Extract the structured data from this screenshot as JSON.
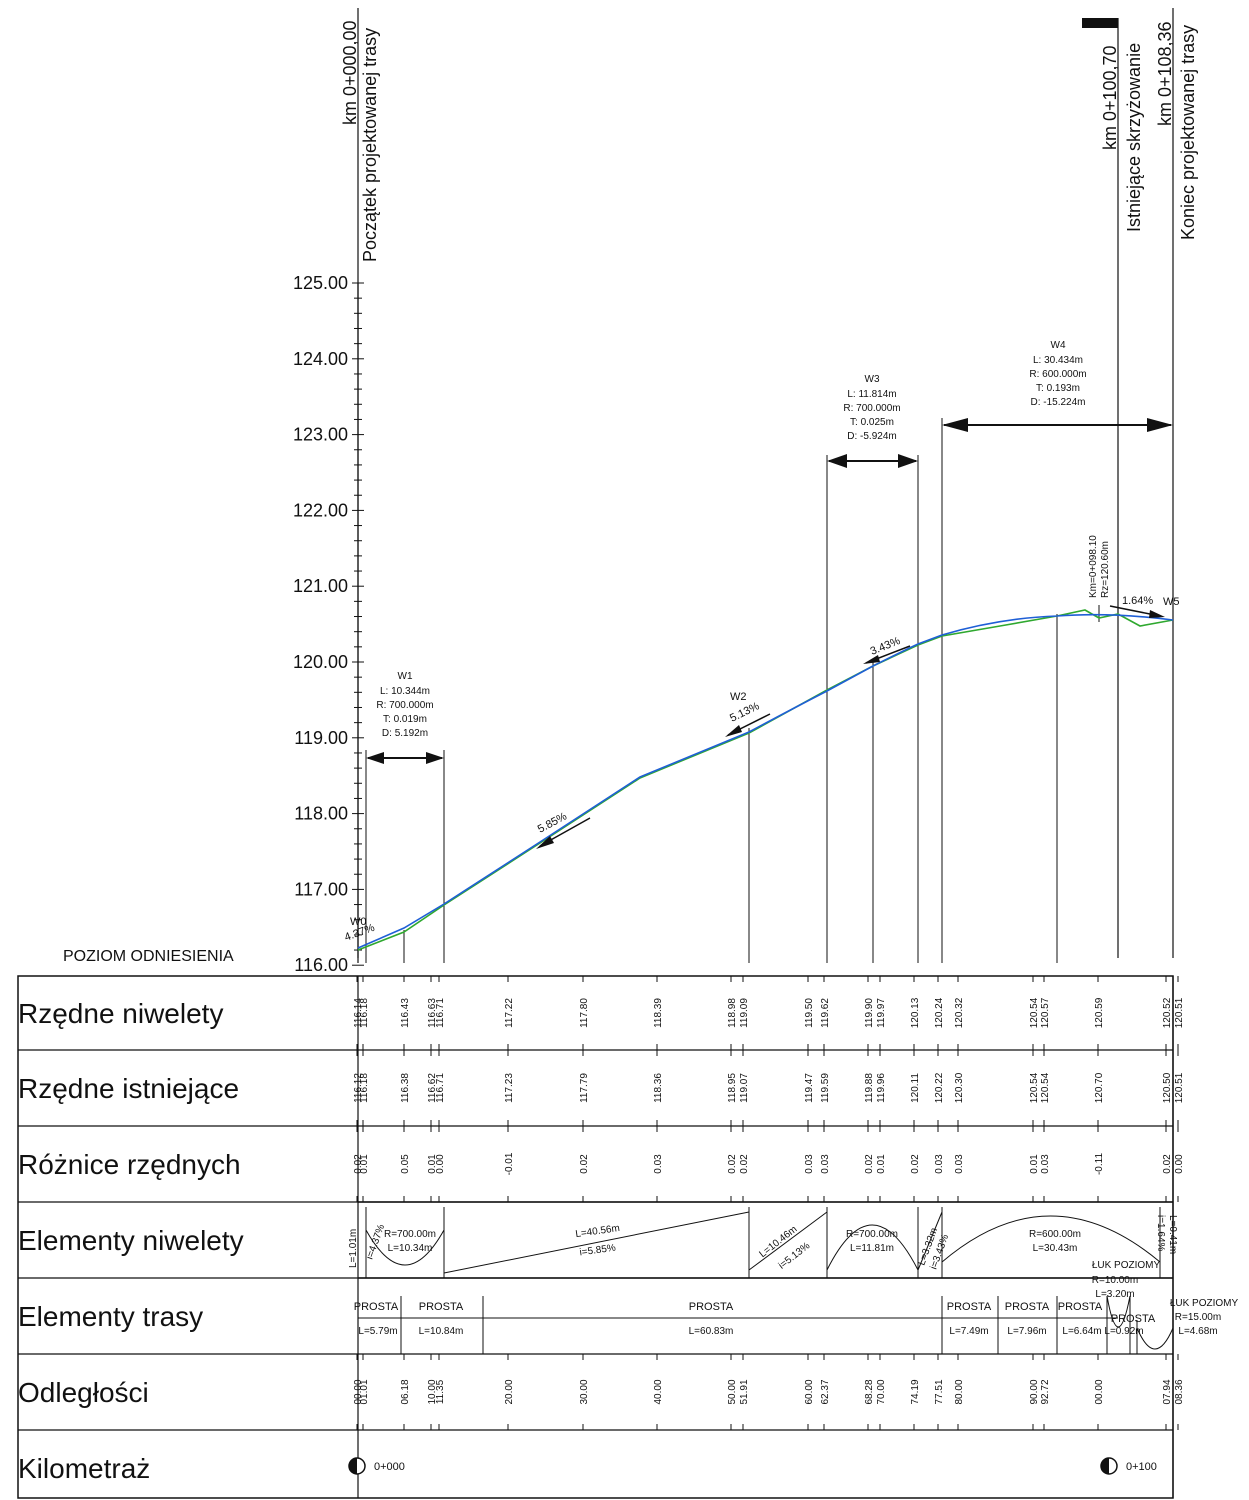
{
  "markers": [
    {
      "km": "km 0+000,00",
      "label": "Początek projektowanej trasy"
    },
    {
      "km": "km 0+100,70",
      "label": "Istniejące skrzyżowanie"
    },
    {
      "km": "km 0+108,36",
      "label": "Koniec projektowanej trasy"
    }
  ],
  "datum_label": "POZIOM ODNIESIENIA",
  "y_ticks": [
    "125.00",
    "124.00",
    "123.00",
    "122.00",
    "121.00",
    "120.00",
    "119.00",
    "118.00",
    "117.00",
    "116.00"
  ],
  "curves": [
    {
      "name": "W1",
      "L": "L: 10.344m",
      "R": "R: 700.000m",
      "T": "T: 0.019m",
      "D": "D: 5.192m"
    },
    {
      "name": "W3",
      "L": "L: 11.814m",
      "R": "R: 700.000m",
      "T": "T: 0.025m",
      "D": "D: -5.924m"
    },
    {
      "name": "W4",
      "L": "L: 30.434m",
      "R": "R: 600.000m",
      "T": "T: 0.193m",
      "D": "D: -15.224m"
    }
  ],
  "vertex_labels": {
    "w0": "W0",
    "w2": "W2",
    "w5": "W5"
  },
  "slopes": {
    "s0": "4.37%",
    "s1": "5.85%",
    "s2": "5.13%",
    "s3": "3.43%",
    "s4": "1.64%"
  },
  "crossing_note": {
    "km": "Km=0+098.10",
    "rz": "Rz=120.60m"
  },
  "row_titles": [
    "Rzędne niwelety",
    "Rzędne istniejące",
    "Różnice rzędnych",
    "Elementy niwelety",
    "Elementy trasy",
    "Odległości",
    "Kilometraż"
  ],
  "rzedne_niwelety": [
    "116.14",
    "116.18",
    "116.43",
    "116.63",
    "116.71",
    "117.22",
    "117.80",
    "118.39",
    "118.98",
    "119.09",
    "119.50",
    "119.62",
    "119.90",
    "119.97",
    "120.13",
    "120.24",
    "120.32",
    "120.54",
    "120.57",
    "120.59",
    "120.52",
    "120.51"
  ],
  "rzedne_istniejace": [
    "116.12",
    "116.18",
    "116.38",
    "116.62",
    "116.71",
    "117.23",
    "117.79",
    "118.36",
    "118.95",
    "119.07",
    "119.47",
    "119.59",
    "119.88",
    "119.96",
    "120.11",
    "120.22",
    "120.30",
    "120.54",
    "120.54",
    "120.70",
    "120.50",
    "120.51"
  ],
  "roznice": [
    "0.02",
    "0.01",
    "0.05",
    "0.01",
    "0.00",
    "-0.01",
    "0.02",
    "0.03",
    "0.02",
    "0.02",
    "0.03",
    "0.03",
    "0.02",
    "0.01",
    "0.02",
    "0.03",
    "0.03",
    "0.01",
    "0.03",
    "-0.11",
    "0.02",
    "0.00"
  ],
  "odleglosci": [
    "00.00",
    "01.01",
    "06.18",
    "10.00",
    "11.35",
    "20.00",
    "30.00",
    "40.00",
    "50.00",
    "51.91",
    "60.00",
    "62.37",
    "68.28",
    "70.00",
    "74.19",
    "77.51",
    "80.00",
    "90.00",
    "92.72",
    "00.00",
    "07.94",
    "08.36"
  ],
  "elementy_niwelety": {
    "e0": "L=1.01m",
    "e1": "i=4.37%",
    "e2": "R=700.00m",
    "e3": "L=10.34m",
    "e4": "L=40.56m",
    "e5": "i=5.85%",
    "e6": "L=10.46m",
    "e7": "i=5.13%",
    "e8": "R=700.00m",
    "e9": "L=11.81m",
    "e10": "L=3.32m",
    "e11": "i=3.43%",
    "e12": "R=600.00m",
    "e13": "L=30.43m",
    "e14": "i=1.64%",
    "e15": "L=0.41m"
  },
  "elementy_trasy": {
    "prosta": "PROSTA",
    "luk": "ŁUK POZIOMY",
    "t0": "L=5.79m",
    "t1": "L=10.84m",
    "t2": "L=60.83m",
    "t3": "L=7.49m",
    "t4": "L=7.96m",
    "t5": "L=6.64m",
    "t6": "L=0.92m",
    "r1": "R=10.00m",
    "r1b": "L=3.20m",
    "r2": "R=15.00m",
    "r2b": "L=4.68m"
  },
  "kilometraz": [
    "0+000",
    "0+100"
  ],
  "colors": {
    "ink": "#111111",
    "design": "#1f5fd6",
    "existing": "#2fa82f"
  }
}
